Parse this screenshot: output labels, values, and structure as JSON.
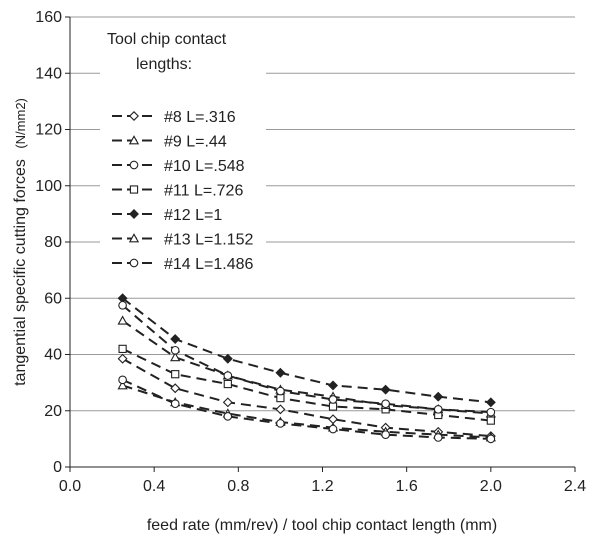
{
  "chart_data": {
    "type": "line",
    "title": "",
    "xlabel": "feed rate (mm/rev) / tool chip contact length (mm)",
    "ylabel": "tangential specific cutting forces",
    "ylabel_unit": "(N/mm2)",
    "xlim": [
      0.0,
      2.4
    ],
    "ylim": [
      0,
      160
    ],
    "x_ticks": [
      "0.0",
      "0.4",
      "0.8",
      "1.2",
      "1.6",
      "2.0",
      "2.4"
    ],
    "y_ticks": [
      "0",
      "20",
      "40",
      "60",
      "80",
      "100",
      "120",
      "140",
      "160"
    ],
    "grid": "horizontal",
    "legend": {
      "placement": "top-left",
      "title_line1": "Tool chip contact",
      "title_line2": "lengths:"
    },
    "line_color": "#222222",
    "line_style": "dashed",
    "series": [
      {
        "name": "#8 L=.316",
        "marker": "diamond-open",
        "x": [
          0.25,
          0.5,
          0.75,
          1.0,
          1.25,
          1.5,
          1.75,
          2.0
        ],
        "y": [
          38.5,
          28,
          23,
          20.5,
          17,
          14,
          12.5,
          11
        ]
      },
      {
        "name": "#9 L=.44",
        "marker": "triangle-open",
        "x": [
          0.25,
          0.5,
          0.75,
          1.0,
          1.25,
          1.5,
          1.75,
          2.0
        ],
        "y": [
          29,
          23,
          19,
          16,
          14,
          12.5,
          11.5,
          10.5
        ]
      },
      {
        "name": "#10 L=.548",
        "marker": "circle-open",
        "x": [
          0.25,
          0.5,
          0.75,
          1.0,
          1.25,
          1.5,
          1.75,
          2.0
        ],
        "y": [
          31,
          22.5,
          18,
          15.5,
          13.5,
          11.5,
          10.5,
          10
        ]
      },
      {
        "name": "#11 L=.726",
        "marker": "square-open",
        "x": [
          0.25,
          0.5,
          0.75,
          1.0,
          1.25,
          1.5,
          1.75,
          2.0
        ],
        "y": [
          42,
          33,
          29.5,
          24.5,
          21.5,
          20.5,
          18.5,
          16.5
        ]
      },
      {
        "name": "#12 L=1",
        "marker": "diamond-filled",
        "x": [
          0.25,
          0.5,
          0.75,
          1.0,
          1.25,
          1.5,
          1.75,
          2.0
        ],
        "y": [
          60,
          45.5,
          38.5,
          33.5,
          29,
          27.5,
          25,
          23
        ]
      },
      {
        "name": "#13 L=1.152",
        "marker": "triangle-open",
        "x": [
          0.25,
          0.5,
          0.75,
          1.0,
          1.25,
          1.5,
          1.75,
          2.0
        ],
        "y": [
          52,
          39,
          32.5,
          27.5,
          25,
          22,
          20.5,
          19
        ]
      },
      {
        "name": "#14 L=1.486",
        "marker": "circle-open",
        "x": [
          0.25,
          0.5,
          0.75,
          1.0,
          1.25,
          1.5,
          1.75,
          2.0
        ],
        "y": [
          57.5,
          41.5,
          32.5,
          27,
          24,
          22.5,
          20.5,
          19.5
        ]
      }
    ]
  }
}
